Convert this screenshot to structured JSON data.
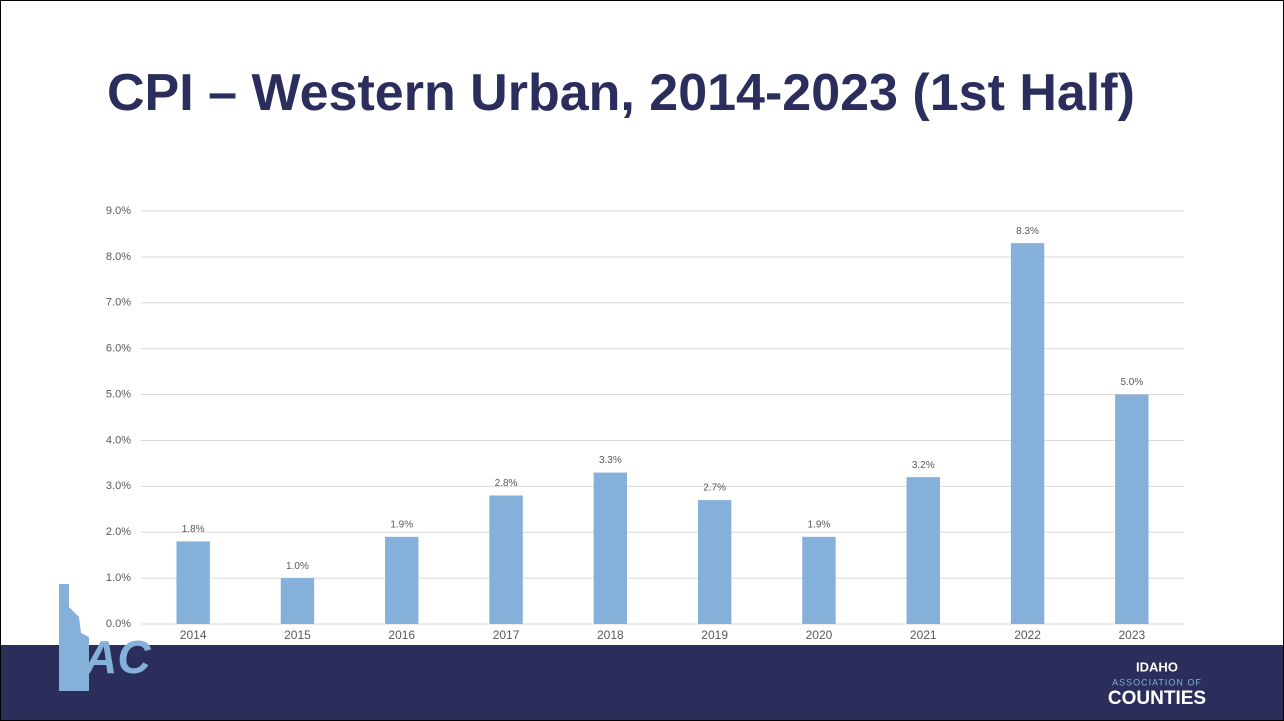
{
  "chart_data": {
    "type": "bar",
    "title": "CPI – Western Urban, 2014-2023 (1st Half)",
    "categories": [
      "2014",
      "2015",
      "2016",
      "2017",
      "2018",
      "2019",
      "2020",
      "2021",
      "2022",
      "2023"
    ],
    "values": [
      1.8,
      1.0,
      1.9,
      2.8,
      3.3,
      2.7,
      1.9,
      3.2,
      8.3,
      5.0
    ],
    "value_labels": [
      "1.8%",
      "1.0%",
      "1.9%",
      "2.8%",
      "3.3%",
      "2.7%",
      "1.9%",
      "3.2%",
      "8.3%",
      "5.0%"
    ],
    "color": "#85b0d9",
    "ylim": [
      0,
      9
    ],
    "yticks": [
      {
        "value": 0,
        "label": "0.0%"
      },
      {
        "value": 1,
        "label": "1.0%"
      },
      {
        "value": 2,
        "label": "2.0%"
      },
      {
        "value": 3,
        "label": "3.0%"
      },
      {
        "value": 4,
        "label": "4.0%"
      },
      {
        "value": 5,
        "label": "5.0%"
      },
      {
        "value": 6,
        "label": "6.0%"
      },
      {
        "value": 7,
        "label": "7.0%"
      },
      {
        "value": 8,
        "label": "8.0%"
      },
      {
        "value": 9,
        "label": "9.0%"
      }
    ],
    "grid": true
  },
  "footer": {
    "logo_left": "IAC",
    "logo_right": [
      "IDAHO",
      "ASSOCIATION OF",
      "COUNTIES"
    ]
  }
}
